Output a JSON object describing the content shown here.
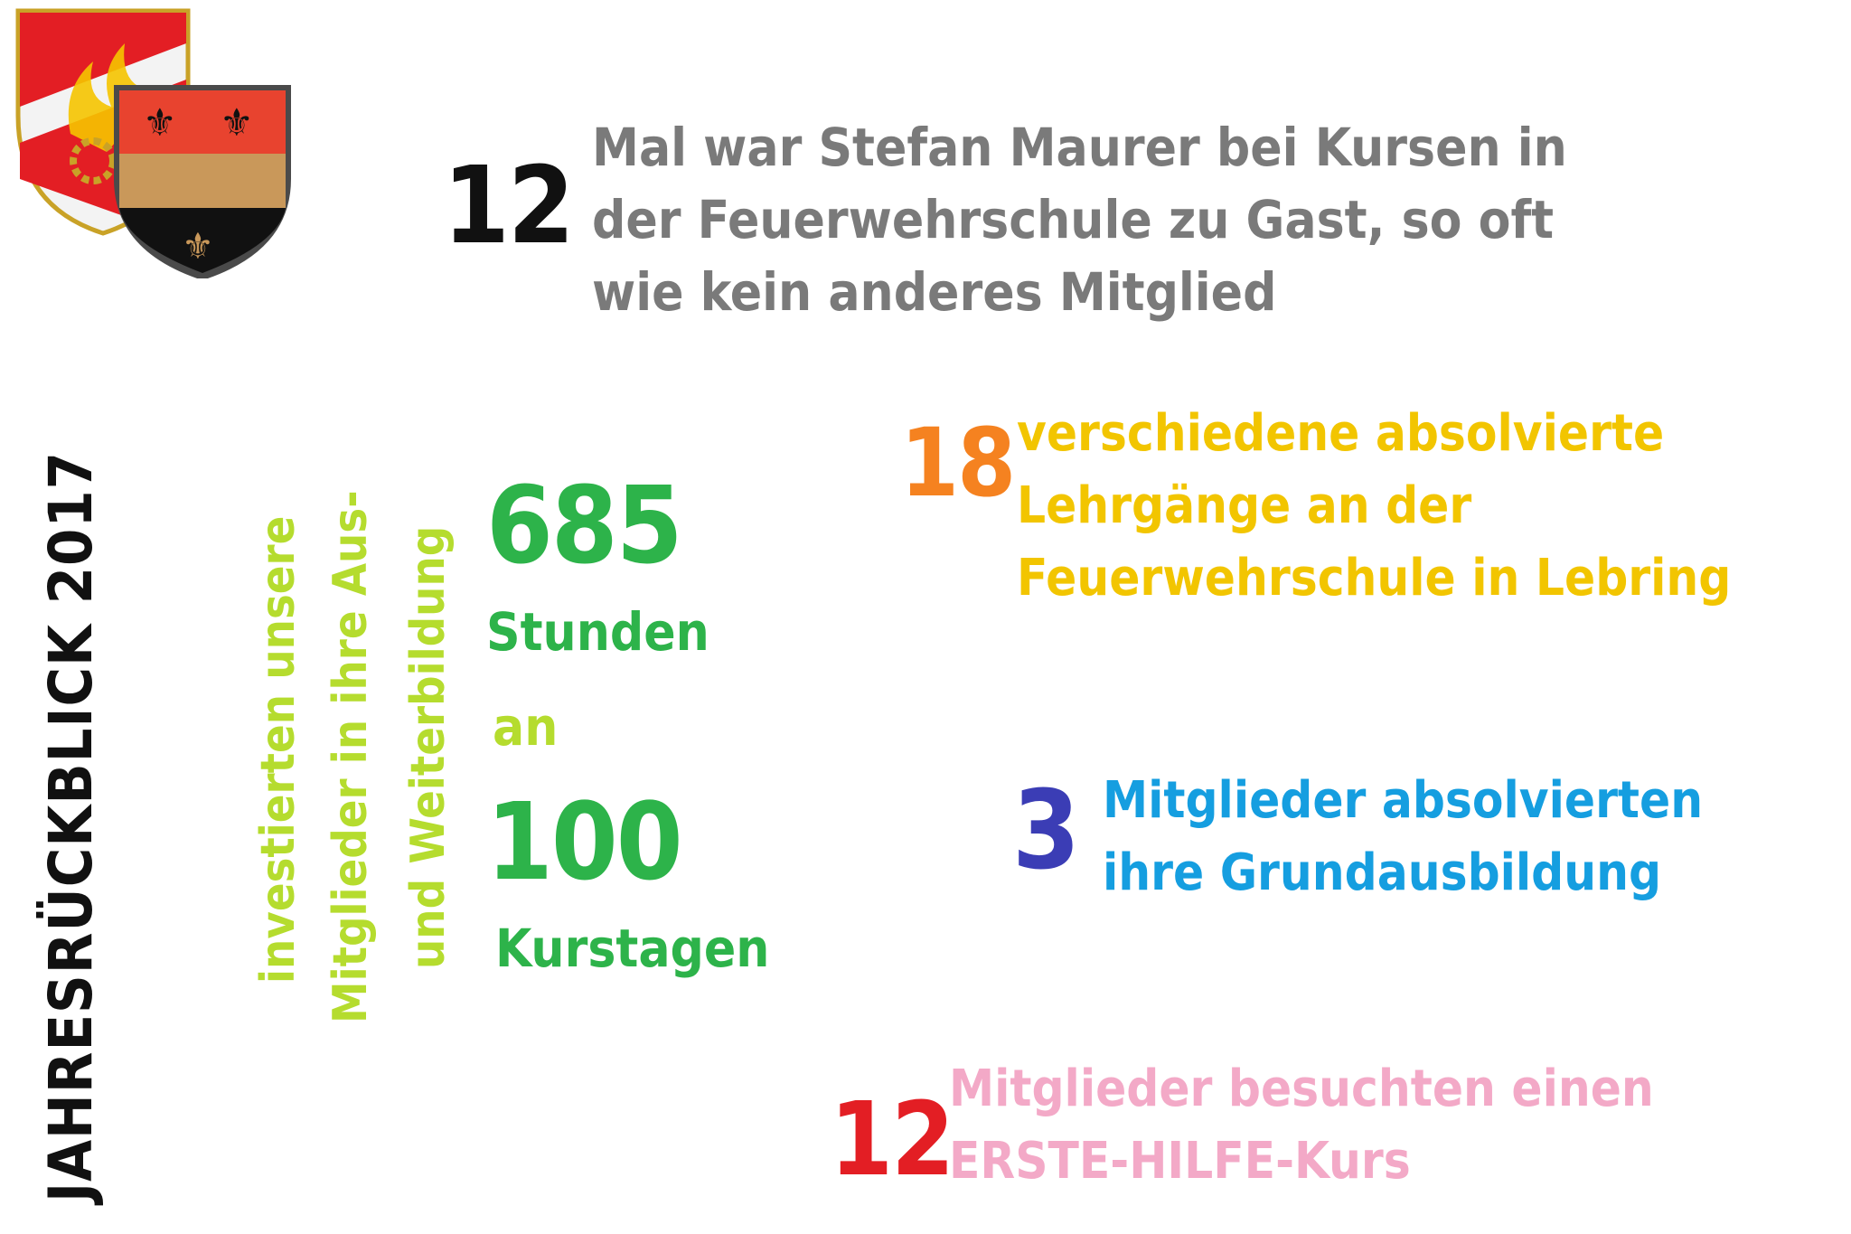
{
  "title": "JAHRESRÜCKBLICK 2017",
  "colors": {
    "gray": "#7a7a7a",
    "black": "#111111",
    "green": "#2db34a",
    "lime": "#b5dc2e",
    "orange": "#f58220",
    "yellow": "#f2c500",
    "indigo": "#3b3db5",
    "blue": "#159ee0",
    "red": "#e31e24",
    "pink": "#f3a9c7"
  },
  "logos": [
    "fire-brigade-emblem",
    "municipal-coat-of-arms"
  ],
  "facts": {
    "courses": {
      "number": "12",
      "lines": [
        "Mal war Stefan Maurer bei Kursen in",
        "der Feuerwehrschule zu Gast, so oft",
        "wie kein anderes Mitglied"
      ]
    },
    "hours": {
      "vertical_lines": [
        "investierten unsere",
        "Mitglieder in ihre Aus-",
        "und Weiterbildung"
      ],
      "hours_number": "685",
      "hours_label": "Stunden",
      "connector": "an",
      "days_number": "100",
      "days_label": "Kurstagen"
    },
    "lehrgaenge": {
      "number": "18",
      "lines": [
        "verschiedene absolvierte",
        "Lehrgänge an der",
        "Feuerwehrschule in Lebring"
      ]
    },
    "grundausbildung": {
      "number": "3",
      "lines": [
        "Mitglieder absolvierten",
        "ihre Grundausbildung"
      ]
    },
    "erste_hilfe": {
      "number": "12",
      "lines": [
        "Mitglieder besuchten einen",
        "ERSTE-HILFE-Kurs"
      ]
    }
  }
}
